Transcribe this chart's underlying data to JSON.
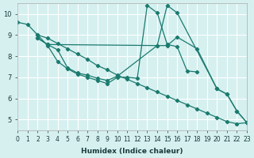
{
  "background_color": "#d6f0f0",
  "grid_color": "#ffffff",
  "line_color": "#1a7a6e",
  "xlabel": "Humidex (Indice chaleur)",
  "xlim": [
    0,
    23
  ],
  "ylim": [
    4.5,
    10.5
  ],
  "yticks": [
    5,
    6,
    7,
    8,
    9,
    10
  ],
  "xticks": [
    0,
    1,
    2,
    3,
    4,
    5,
    6,
    7,
    8,
    9,
    10,
    11,
    12,
    13,
    14,
    15,
    16,
    17,
    18,
    19,
    20,
    21,
    22,
    23
  ],
  "series": [
    {
      "x": [
        0,
        1,
        2,
        3,
        4,
        5,
        6,
        7,
        8,
        9,
        10,
        11,
        12,
        13,
        14,
        15,
        16,
        17,
        18,
        19,
        20,
        21,
        22,
        23
      ],
      "y": [
        9.6,
        9.5,
        9.0,
        8.85,
        8.6,
        8.35,
        8.1,
        7.85,
        7.55,
        7.35,
        7.1,
        6.9,
        6.7,
        6.5,
        6.3,
        6.1,
        5.9,
        5.7,
        5.5,
        5.3,
        5.1,
        4.9,
        4.8,
        4.85
      ]
    },
    {
      "x": [
        2,
        3,
        4,
        5,
        6,
        7,
        8,
        9,
        10,
        11,
        12,
        13,
        14,
        15,
        16,
        17,
        18
      ],
      "y": [
        9.0,
        8.5,
        7.75,
        7.4,
        7.15,
        7.0,
        6.85,
        6.7,
        7.0,
        7.0,
        6.95,
        10.4,
        10.05,
        8.55,
        8.45,
        7.3,
        7.25
      ]
    },
    {
      "x": [
        2,
        3,
        4,
        5,
        6,
        7,
        8,
        9,
        10,
        14,
        15,
        16,
        18,
        20,
        21,
        22,
        23
      ],
      "y": [
        8.85,
        8.55,
        8.3,
        7.45,
        7.2,
        7.1,
        6.95,
        6.85,
        7.05,
        8.5,
        8.5,
        8.9,
        8.35,
        6.45,
        6.2,
        5.4,
        4.85
      ]
    },
    {
      "x": [
        2,
        3,
        14,
        15,
        16,
        20,
        21,
        22,
        23
      ],
      "y": [
        8.85,
        8.55,
        8.5,
        10.4,
        10.05,
        6.45,
        6.2,
        5.4,
        4.85
      ]
    }
  ]
}
